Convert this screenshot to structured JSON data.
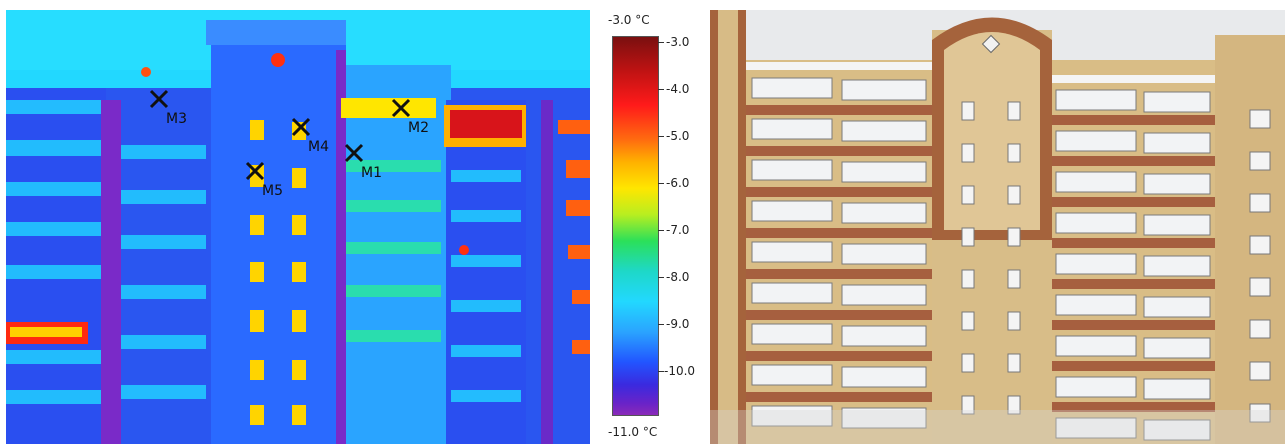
{
  "thermal_image": {
    "markers": [
      {
        "label": "M1"
      },
      {
        "label": "M2"
      },
      {
        "label": "M3"
      },
      {
        "label": "M4"
      },
      {
        "label": "M5"
      }
    ]
  },
  "scale": {
    "max_label": "-3.0 °C",
    "min_label": "-11.0 °C",
    "ticks": [
      "-3.0",
      "-4.0",
      "-5.0",
      "-6.0",
      "-7.0",
      "-8.0",
      "-9.0",
      "-10.0"
    ]
  }
}
